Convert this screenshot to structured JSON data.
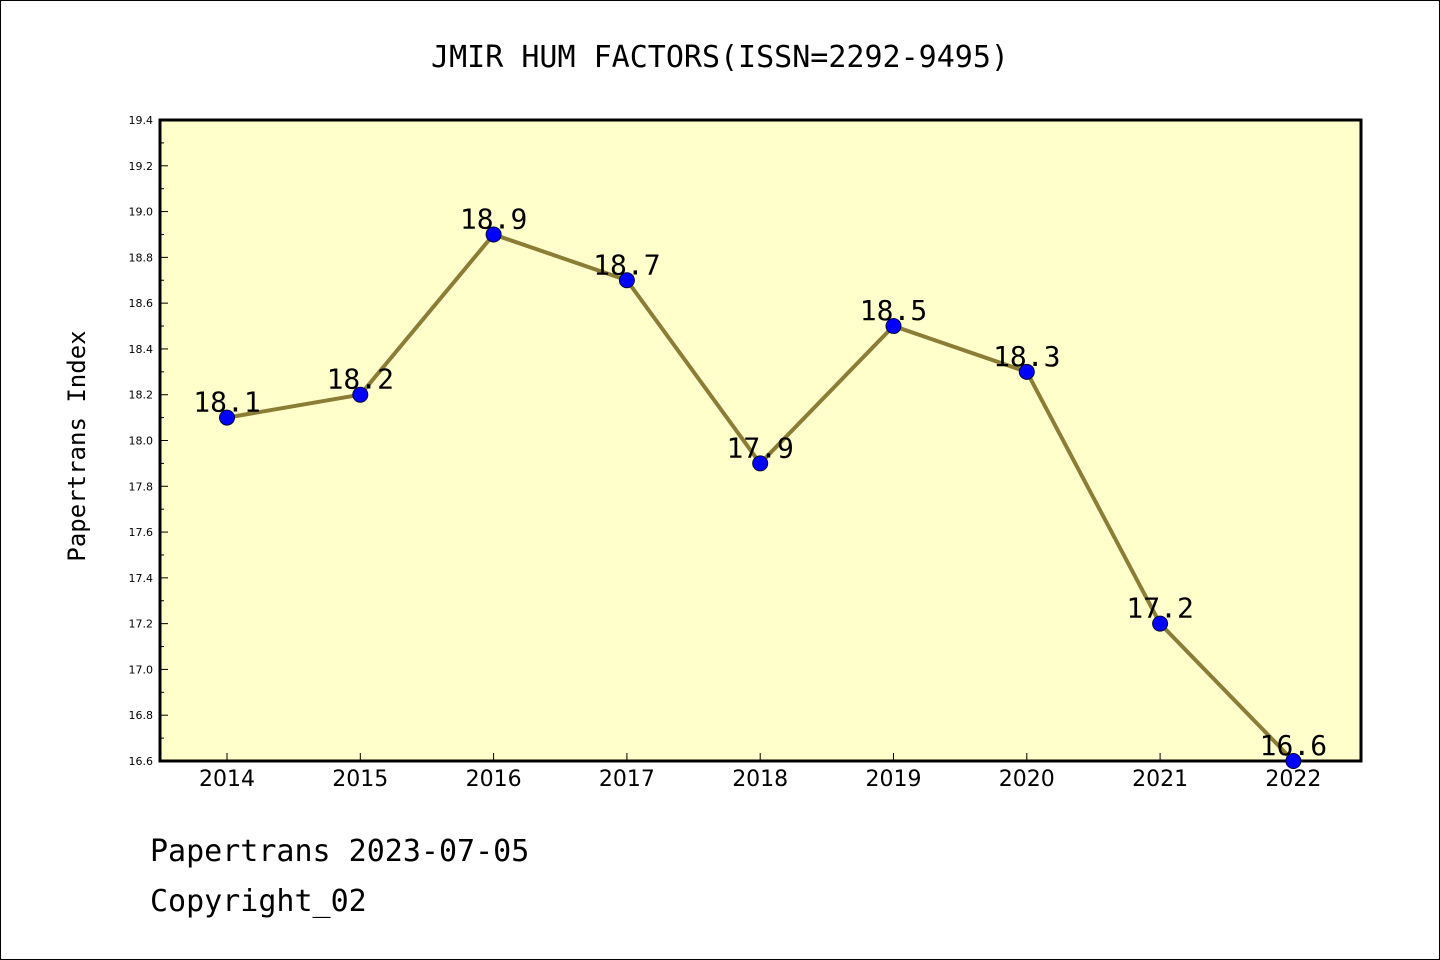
{
  "chart_data": {
    "type": "line",
    "title": "JMIR HUM FACTORS(ISSN=2292-9495)",
    "xlabel": "",
    "ylabel": "Papertrans Index",
    "categories": [
      "2014",
      "2015",
      "2016",
      "2017",
      "2018",
      "2019",
      "2020",
      "2021",
      "2022"
    ],
    "series": [
      {
        "values": [
          18.1,
          18.2,
          18.9,
          18.7,
          17.9,
          18.5,
          18.3,
          17.2,
          16.6
        ]
      }
    ],
    "data_labels": [
      "18.1",
      "18.2",
      "18.9",
      "18.7",
      "17.9",
      "18.5",
      "18.3",
      "17.2",
      "16.6"
    ],
    "ylim": [
      16.6,
      19.4
    ],
    "yticks": [
      "16.6",
      "16.8",
      "17.0",
      "17.2",
      "17.4",
      "17.6",
      "17.8",
      "18.0",
      "18.2",
      "18.4",
      "18.6",
      "18.8",
      "19.0",
      "19.2",
      "19.4"
    ],
    "grid": false,
    "colors": {
      "plot_background": "#ffffcc",
      "line": "#8b7d36",
      "marker": "#0000ff"
    }
  },
  "footer": {
    "line1": "Papertrans 2023-07-05",
    "line2": "Copyright_02"
  }
}
